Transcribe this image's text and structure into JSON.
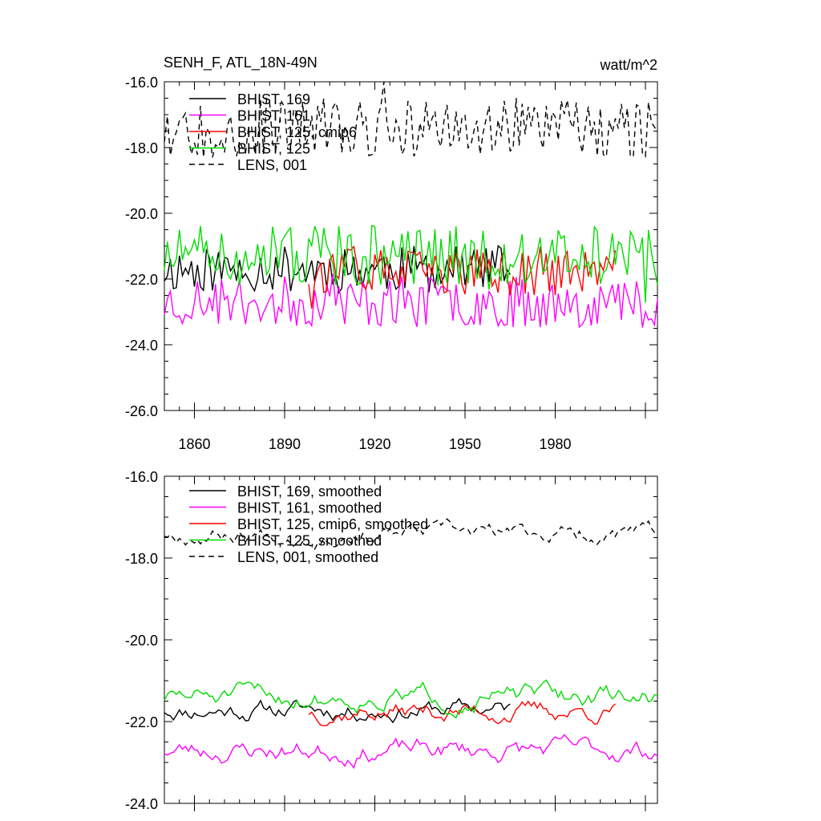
{
  "chart_data": [
    {
      "type": "line",
      "title_left": "SENH_F, ATL_18N-49N",
      "title_right": "watt/m^2",
      "xlabel": "",
      "ylabel": "",
      "xlim": [
        1850,
        2014
      ],
      "ylim": [
        -26.0,
        -16.0
      ],
      "yticks": [
        "-16.0",
        "-18.0",
        "-20.0",
        "-22.0",
        "-24.0",
        "-26.0"
      ],
      "ytick_values": [
        -16,
        -18,
        -20,
        -22,
        -24,
        -26
      ],
      "xticks": [
        "1860",
        "1890",
        "1920",
        "1950",
        "1980"
      ],
      "xtick_values": [
        1860,
        1890,
        1920,
        1950,
        1980
      ],
      "legend_position": "top-left",
      "series": [
        {
          "name": "BHIST, 169",
          "color": "#000000",
          "dash": "solid",
          "start": 1850,
          "end": 1965,
          "mean": -21.7,
          "amp": 0.55,
          "seed": 11
        },
        {
          "name": "BHIST, 161",
          "color": "#ff00ff",
          "dash": "solid",
          "start": 1850,
          "end": 2014,
          "mean": -22.7,
          "amp": 0.6,
          "seed": 23
        },
        {
          "name": "BHIST, 125, cmip6",
          "color": "#ff0000",
          "dash": "solid",
          "start": 1898,
          "end": 2000,
          "mean": -21.8,
          "amp": 0.55,
          "seed": 37
        },
        {
          "name": "BHIST, 125",
          "color": "#00dd00",
          "dash": "solid",
          "start": 1850,
          "end": 2014,
          "mean": -21.3,
          "amp": 0.7,
          "seed": 51
        },
        {
          "name": "LENS, 001",
          "color": "#000000",
          "dash": "dashed",
          "start": 1850,
          "end": 2014,
          "mean": -17.4,
          "amp": 0.7,
          "seed": 67
        }
      ]
    },
    {
      "type": "line",
      "title_left": "",
      "title_right": "",
      "xlabel": "",
      "ylabel": "",
      "xlim": [
        1850,
        2014
      ],
      "ylim": [
        -24.0,
        -16.0
      ],
      "yticks": [
        "-16.0",
        "-18.0",
        "-20.0",
        "-22.0",
        "-24.0"
      ],
      "ytick_values": [
        -16,
        -18,
        -20,
        -22,
        -24
      ],
      "xtick_values": [
        1860,
        1890,
        1920,
        1950,
        1980
      ],
      "legend_position": "top-left",
      "series": [
        {
          "name": "BHIST, 169, smoothed",
          "color": "#000000",
          "dash": "solid",
          "start": 1850,
          "end": 1965,
          "mean": -21.7,
          "amp": 0.2,
          "seed": 11
        },
        {
          "name": "BHIST, 161, smoothed",
          "color": "#ff00ff",
          "dash": "solid",
          "start": 1850,
          "end": 2014,
          "mean": -22.7,
          "amp": 0.22,
          "seed": 23
        },
        {
          "name": "BHIST, 125, cmip6, smoothed",
          "color": "#ff0000",
          "dash": "solid",
          "start": 1898,
          "end": 2000,
          "mean": -21.75,
          "amp": 0.2,
          "seed": 37
        },
        {
          "name": "BHIST, 125, smoothed",
          "color": "#00dd00",
          "dash": "solid",
          "start": 1850,
          "end": 2014,
          "mean": -21.4,
          "amp": 0.22,
          "seed": 51
        },
        {
          "name": "LENS, 001, smoothed",
          "color": "#000000",
          "dash": "dashed",
          "start": 1850,
          "end": 2014,
          "mean": -17.4,
          "amp": 0.18,
          "seed": 67
        }
      ]
    }
  ]
}
